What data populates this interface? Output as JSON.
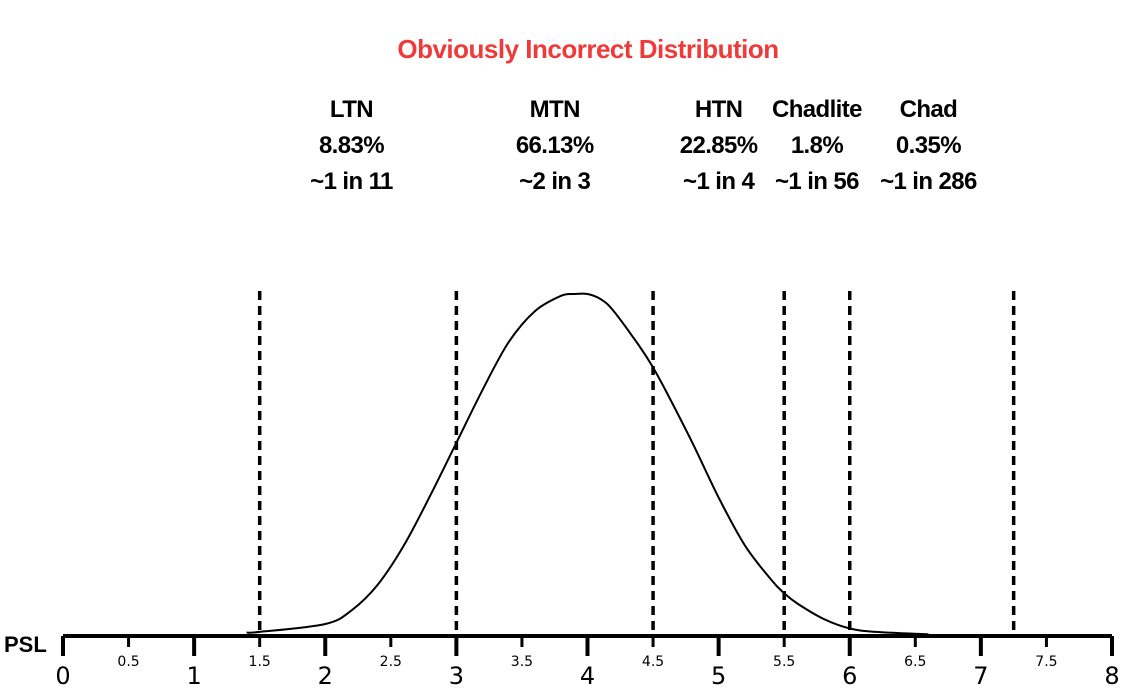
{
  "chart_data": {
    "type": "line",
    "title": "Obviously Incorrect Distribution",
    "title_color": "#f03a3a",
    "xlabel": "PSL",
    "ylabel": "",
    "xlim": [
      0,
      8
    ],
    "major_ticks": [
      0,
      1,
      2,
      3,
      4,
      5,
      6,
      7,
      8
    ],
    "minor_ticks": [
      0.5,
      1.5,
      2.5,
      3.5,
      4.5,
      5.5,
      6.5,
      7.5
    ],
    "boundaries": [
      1.5,
      3,
      4.5,
      5.5,
      6,
      7.25
    ],
    "categories": [
      {
        "name": "LTN",
        "percent": "8.83%",
        "ratio": "~1 in 11",
        "x": 2.2
      },
      {
        "name": "MTN",
        "percent": "66.13%",
        "ratio": "~2 in 3",
        "x": 3.75
      },
      {
        "name": "HTN",
        "percent": "22.85%",
        "ratio": "~1 in 4",
        "x": 5.0
      },
      {
        "name": "Chadlite",
        "percent": "1.8%",
        "ratio": "~1 in 56",
        "x": 5.75
      },
      {
        "name": "Chad",
        "percent": "0.35%",
        "ratio": "~1 in 286",
        "x": 6.6
      }
    ],
    "curve": {
      "x": [
        1.4,
        1.5,
        2.0,
        2.2,
        2.4,
        2.6,
        2.8,
        3.0,
        3.2,
        3.4,
        3.6,
        3.8,
        3.9,
        4.0,
        4.1,
        4.2,
        4.4,
        4.5,
        4.6,
        4.8,
        5.0,
        5.2,
        5.4,
        5.5,
        5.6,
        5.8,
        6.0,
        6.2,
        6.6
      ],
      "y": [
        0.01,
        0.012,
        0.035,
        0.075,
        0.15,
        0.265,
        0.41,
        0.565,
        0.72,
        0.86,
        0.95,
        0.995,
        1.0,
        1.0,
        0.985,
        0.95,
        0.845,
        0.785,
        0.715,
        0.565,
        0.405,
        0.265,
        0.165,
        0.125,
        0.095,
        0.05,
        0.022,
        0.012,
        0.005
      ]
    }
  }
}
